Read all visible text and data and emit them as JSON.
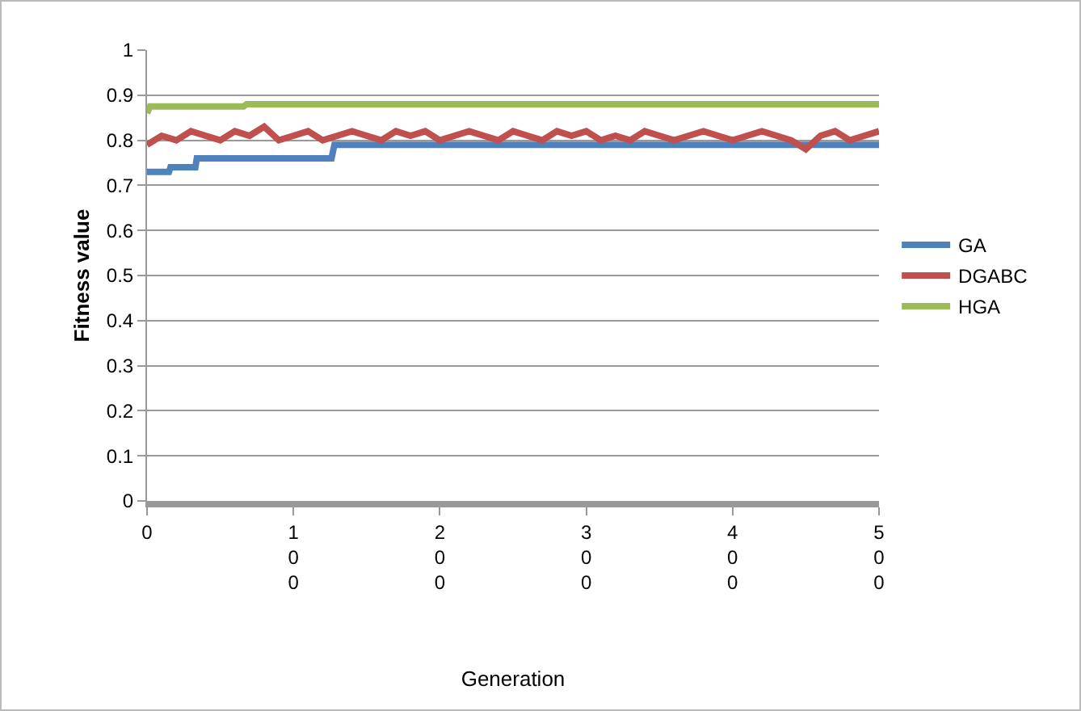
{
  "chart_data": {
    "type": "line",
    "xlabel": "Generation",
    "ylabel": "Fitness value",
    "xlim": [
      0,
      500
    ],
    "xticks": [
      {
        "value": 0,
        "label": "0"
      },
      {
        "value": 100,
        "label": "100"
      },
      {
        "value": 200,
        "label": "200"
      },
      {
        "value": 300,
        "label": "300"
      },
      {
        "value": 400,
        "label": "400"
      },
      {
        "value": 500,
        "label": "500"
      }
    ],
    "ylim": [
      0,
      1
    ],
    "yticks": [
      0,
      0.1,
      0.2,
      0.3,
      0.4,
      0.5,
      0.6,
      0.7,
      0.8,
      0.9,
      1
    ],
    "grid": "y",
    "legend": "right",
    "marker": "none",
    "line_style": "solid",
    "series": [
      {
        "name": "GA",
        "color": "#4f81bd",
        "x": [
          0,
          15,
          16,
          33,
          34,
          126,
          128,
          500
        ],
        "values": [
          0.73,
          0.73,
          0.74,
          0.74,
          0.76,
          0.76,
          0.79,
          0.79
        ]
      },
      {
        "name": "DGABC",
        "color": "#c0504d",
        "x": [
          0,
          10,
          20,
          30,
          40,
          50,
          60,
          70,
          80,
          90,
          100,
          110,
          120,
          130,
          140,
          150,
          160,
          170,
          180,
          190,
          200,
          210,
          220,
          230,
          240,
          250,
          260,
          270,
          280,
          290,
          300,
          310,
          320,
          330,
          340,
          350,
          360,
          370,
          380,
          390,
          400,
          410,
          420,
          430,
          440,
          450,
          460,
          470,
          480,
          490,
          500
        ],
        "values": [
          0.79,
          0.81,
          0.8,
          0.82,
          0.81,
          0.8,
          0.82,
          0.81,
          0.83,
          0.8,
          0.81,
          0.82,
          0.8,
          0.81,
          0.82,
          0.81,
          0.8,
          0.82,
          0.81,
          0.82,
          0.8,
          0.81,
          0.82,
          0.81,
          0.8,
          0.82,
          0.81,
          0.8,
          0.82,
          0.81,
          0.82,
          0.8,
          0.81,
          0.8,
          0.82,
          0.81,
          0.8,
          0.81,
          0.82,
          0.81,
          0.8,
          0.81,
          0.82,
          0.81,
          0.8,
          0.78,
          0.81,
          0.82,
          0.8,
          0.81,
          0.82
        ]
      },
      {
        "name": "HGA",
        "color": "#9bbb59",
        "x": [
          0,
          2,
          66,
          68,
          500
        ],
        "values": [
          0.86,
          0.875,
          0.875,
          0.88,
          0.88
        ]
      }
    ]
  }
}
